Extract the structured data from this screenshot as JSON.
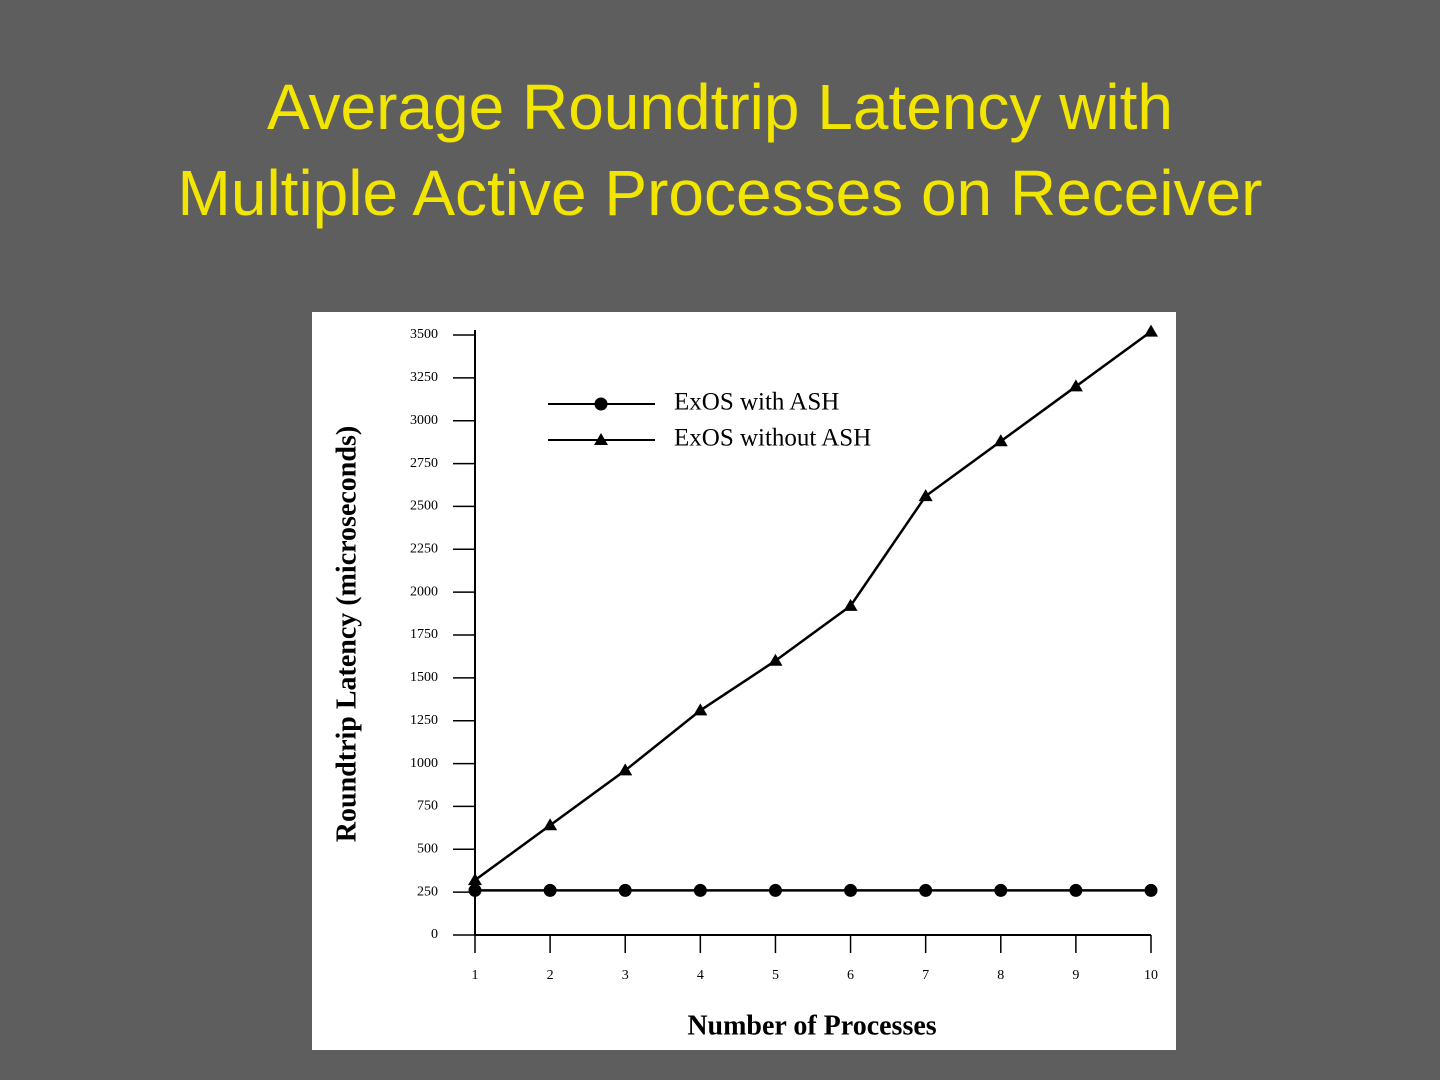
{
  "chart_data": {
    "type": "line",
    "title": "Average Roundtrip Latency with Multiple Active Processes on Receiver",
    "xlabel": "Number of Processes",
    "ylabel": "Roundtrip Latency (microseconds)",
    "x": [
      1,
      2,
      3,
      4,
      5,
      6,
      7,
      8,
      9,
      10
    ],
    "series": [
      {
        "name": "ExOS with ASH",
        "color": "#000000",
        "marker": "circle",
        "values": [
          260,
          260,
          260,
          260,
          260,
          260,
          260,
          260,
          260,
          260
        ]
      },
      {
        "name": "ExOS without ASH",
        "color": "#000000",
        "marker": "triangle",
        "values": [
          320,
          640,
          960,
          1310,
          1600,
          1920,
          2560,
          2880,
          3200,
          3520
        ]
      }
    ],
    "xlim": [
      1,
      10
    ],
    "xticks": [
      1,
      2,
      3,
      4,
      5,
      6,
      7,
      8,
      9,
      10
    ],
    "ylim": [
      0,
      3500
    ],
    "yticks": [
      0,
      250,
      500,
      750,
      1000,
      1250,
      1500,
      1750,
      2000,
      2250,
      2500,
      2750,
      3000,
      3250,
      3500
    ],
    "legend": "upper left",
    "grid": false
  }
}
